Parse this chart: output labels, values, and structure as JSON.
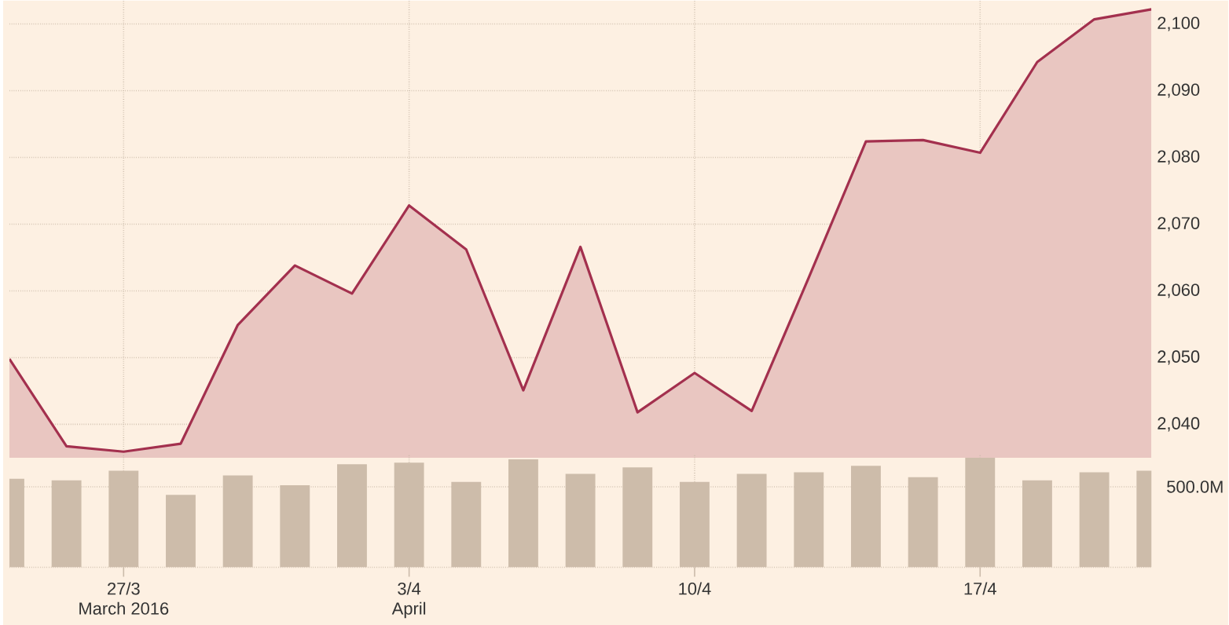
{
  "chart_data": [
    {
      "type": "area",
      "categories": [
        null,
        null,
        null,
        null,
        null,
        null,
        null,
        null,
        null,
        null,
        null,
        null,
        null,
        null,
        null,
        null,
        null,
        null,
        null,
        null,
        null
      ],
      "series": [
        {
          "color": "#a3304e",
          "values": [
            2049.8,
            2036.7,
            2035.9,
            2037.1,
            2054.9,
            2063.8,
            2059.6,
            2072.8,
            2066.2,
            2045.1,
            2066.6,
            2041.8,
            2047.7,
            2042.0,
            2062.0,
            2082.4,
            2082.6,
            2080.7,
            2094.3,
            2100.7,
            2102.2
          ]
        }
      ],
      "ylim": [
        2035,
        2103.5
      ],
      "yticks": [
        {
          "value": 2040,
          "label": "2,040"
        },
        {
          "value": 2050,
          "label": "2,050"
        },
        {
          "value": 2060,
          "label": "2,060"
        },
        {
          "value": 2070,
          "label": "2,070"
        },
        {
          "value": 2080,
          "label": "2,080"
        },
        {
          "value": 2090,
          "label": "2,090"
        },
        {
          "value": 2100,
          "label": "2,100"
        }
      ],
      "grid": true,
      "tick_labels": "y"
    },
    {
      "type": "bar",
      "categories": [
        null,
        null,
        "27/3",
        null,
        null,
        null,
        null,
        "3/4",
        null,
        null,
        null,
        null,
        "10/4",
        null,
        null,
        null,
        null,
        "17/4",
        null,
        null,
        null
      ],
      "values": [
        550,
        540,
        600,
        450,
        570,
        510,
        640,
        650,
        530,
        670,
        580,
        620,
        530,
        580,
        590,
        630,
        560,
        680,
        540,
        590,
        600
      ],
      "color": "#cdbcaa",
      "ylim": [
        0,
        700
      ],
      "yticks": [
        {
          "value": 0,
          "label": null
        },
        {
          "value": 500,
          "label": "500.0M"
        }
      ],
      "grid": true,
      "annotations": [
        "March 2016",
        "April"
      ]
    }
  ]
}
